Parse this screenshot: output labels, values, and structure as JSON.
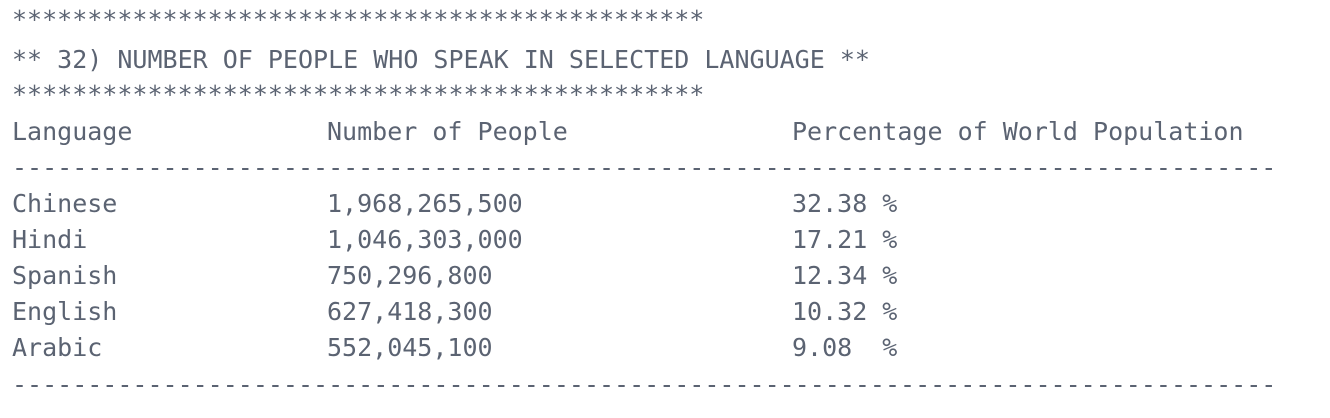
{
  "border": "**********************************************",
  "title": "** 32) NUMBER OF PEOPLE WHO SPEAK IN SELECTED LANGUAGE **",
  "table": {
    "columns": [
      "Language",
      "Number of People",
      "Percentage of World Population"
    ],
    "separator": "------------------------------------------------------------------------------------",
    "rows": [
      [
        "Chinese",
        "1,968,265,500",
        "32.38 %"
      ],
      [
        "Hindi",
        "1,046,303,000",
        "17.21 %"
      ],
      [
        "Spanish",
        "750,296,800",
        "12.34 %"
      ],
      [
        "English",
        "627,418,300",
        "10.32 %"
      ],
      [
        "Arabic",
        "552,045,100",
        "9.08  %"
      ]
    ]
  }
}
